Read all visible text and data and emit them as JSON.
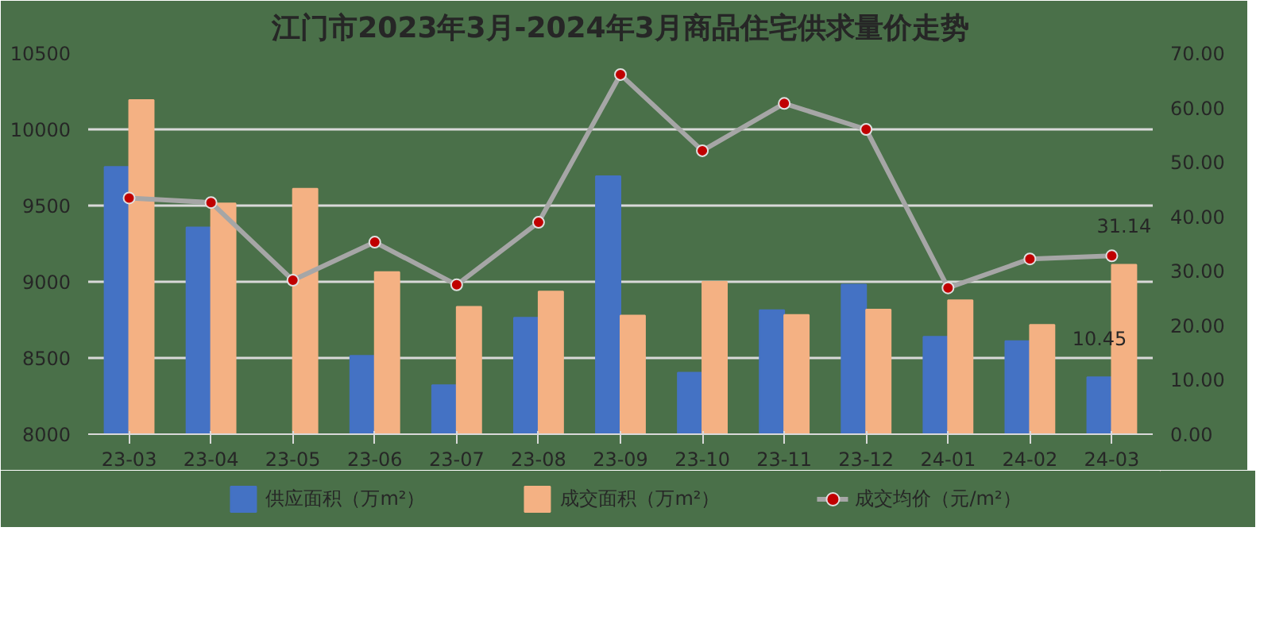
{
  "chart_data": {
    "type": "bar",
    "title": "江门市2023年3月-2024年3月商品住宅供求量价走势",
    "categories": [
      "23-03",
      "23-04",
      "23-05",
      "23-06",
      "23-07",
      "23-08",
      "23-09",
      "23-10",
      "23-11",
      "23-12",
      "24-01",
      "24-02",
      "24-03"
    ],
    "series": [
      {
        "name": "供应面积（万m²）",
        "color": "#4472c4",
        "axis": "y2",
        "values": [
          49.1,
          38,
          null,
          14.4,
          9.0,
          21.4,
          47.4,
          11.3,
          22.8,
          27.5,
          17.9,
          17.1,
          10.45
        ],
        "value_labels": [
          null,
          null,
          null,
          null,
          null,
          null,
          null,
          null,
          null,
          null,
          null,
          null,
          "10.45"
        ]
      },
      {
        "name": "成交面积（万m²）",
        "color": "#f4b183",
        "axis": "y2",
        "values": [
          61.4,
          42.4,
          45.1,
          29.8,
          23.4,
          26.2,
          21.8,
          28,
          21.9,
          22.9,
          24.6,
          20.1,
          31.14
        ],
        "value_labels": [
          null,
          null,
          null,
          null,
          null,
          null,
          null,
          null,
          null,
          null,
          null,
          null,
          "31.14"
        ]
      },
      {
        "name": "成交均价（元/m²）",
        "color": "#a6a6a6",
        "type": "line",
        "axis": "y",
        "marker": "circle",
        "values": [
          9550,
          9520,
          9010,
          9260,
          8980,
          9390,
          10360,
          9860,
          10170,
          10000,
          8960,
          9150,
          9170
        ]
      }
    ],
    "ylim": [
      8000,
      10500
    ],
    "yticks": [
      8000,
      8500,
      9000,
      9500,
      10000,
      10500
    ],
    "y2lim": [
      0,
      70
    ],
    "y2ticks": [
      {
        "value": 0,
        "label": "0.00"
      },
      {
        "value": 10,
        "label": "10.00"
      },
      {
        "value": 20,
        "label": "20.00"
      },
      {
        "value": 30,
        "label": "30.00"
      },
      {
        "value": 40,
        "label": "40.00"
      },
      {
        "value": 50,
        "label": "50.00"
      },
      {
        "value": 60,
        "label": "60.00"
      },
      {
        "value": 70,
        "label": "70.00"
      }
    ],
    "grid": "y",
    "legend": "bottom",
    "line_style": "solid"
  }
}
